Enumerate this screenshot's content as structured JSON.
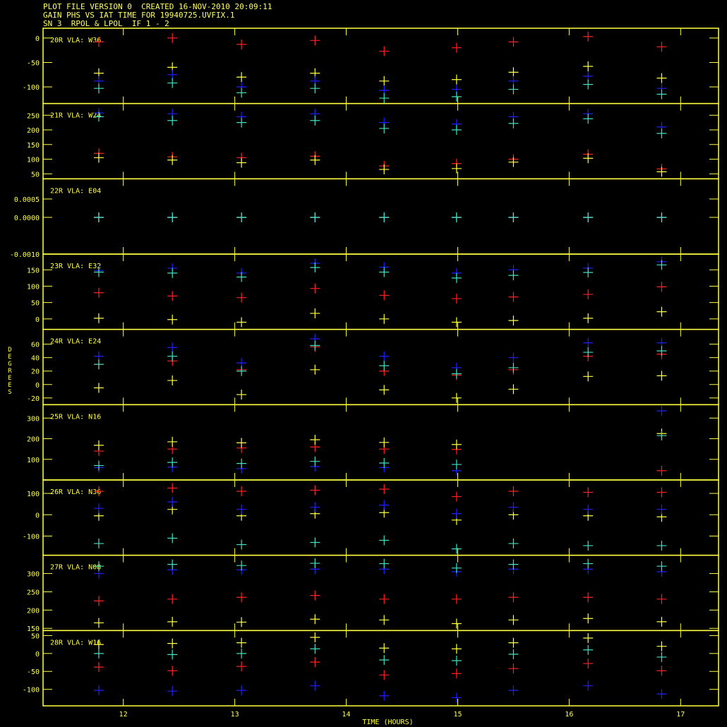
{
  "header": {
    "line1": "PLOT FILE VERSION 0  CREATED 16-NOV-2010 20:09:11",
    "line2": "GAIN PHS VS IAT TIME FOR 19940725.UVFIX.1",
    "line3": "SN 3  RPOL & LPOL  IF 1 - 2"
  },
  "colors": {
    "axes": "#ffff40",
    "series": [
      "#ff2020",
      "#ffff40",
      "#2020ff",
      "#40e0c0"
    ]
  },
  "chart_data": {
    "type": "scatter",
    "xlabel": "TIME (HOURS)",
    "ylabel": "DEGREES",
    "xlim": [
      11.28,
      17.34
    ],
    "xticks": [
      12,
      13,
      14,
      15,
      16,
      17
    ],
    "x": [
      11.78,
      12.44,
      13.06,
      13.72,
      14.34,
      14.99,
      15.5,
      16.17,
      16.83
    ],
    "panels": [
      {
        "label": "20R VLA: W36",
        "ylim": [
          -134,
          20
        ],
        "yticks": [
          0,
          -50,
          -100
        ],
        "yticklabels": [
          "0",
          "-50",
          "-100"
        ],
        "series": [
          [
            -8,
            0,
            -13,
            -5,
            -27,
            -20,
            -8,
            3,
            -18
          ],
          [
            -72,
            -60,
            -80,
            -72,
            -88,
            -85,
            -70,
            -58,
            -82
          ],
          [
            -88,
            -75,
            -100,
            -88,
            -107,
            -105,
            -88,
            -78,
            -103
          ],
          [
            -103,
            -92,
            -112,
            -103,
            -123,
            -120,
            -105,
            -95,
            -115
          ]
        ]
      },
      {
        "label": "21R VLA: W24",
        "ylim": [
          33,
          290
        ],
        "yticks": [
          250,
          200,
          150,
          100,
          50
        ],
        "yticklabels": [
          "250",
          "200",
          "150",
          "100",
          "50"
        ],
        "series": [
          [
            120,
            108,
            105,
            110,
            77,
            85,
            100,
            117,
            67
          ],
          [
            105,
            97,
            88,
            97,
            65,
            68,
            90,
            103,
            57
          ],
          [
            258,
            255,
            245,
            255,
            225,
            220,
            245,
            255,
            210
          ],
          [
            245,
            232,
            225,
            232,
            205,
            200,
            222,
            238,
            188
          ]
        ]
      },
      {
        "label": "22R VLA: E04",
        "ylim": [
          -0.001,
          0.00105
        ],
        "yticks": [
          0.0005,
          0,
          -0.001
        ],
        "yticklabels": [
          "0.0005",
          "0.0000",
          "-0.0010"
        ],
        "series": [
          [
            0,
            0,
            0,
            0,
            0,
            0,
            0,
            0,
            0
          ],
          [
            0,
            0,
            0,
            0,
            0,
            0,
            0,
            0,
            0
          ],
          [
            0,
            0,
            0,
            0,
            0,
            0,
            0,
            0,
            0
          ],
          [
            0,
            0,
            0,
            0,
            0,
            0,
            0,
            0,
            0
          ]
        ]
      },
      {
        "label": "23R VLA: E32",
        "ylim": [
          -32,
          198
        ],
        "yticks": [
          150,
          100,
          50,
          0
        ],
        "yticklabels": [
          "150",
          "100",
          "50",
          "0"
        ],
        "series": [
          [
            80,
            70,
            65,
            93,
            72,
            62,
            67,
            75,
            98
          ],
          [
            2,
            -2,
            -10,
            17,
            0,
            -10,
            -5,
            2,
            22
          ],
          [
            148,
            155,
            140,
            170,
            158,
            140,
            150,
            155,
            175
          ],
          [
            143,
            140,
            128,
            157,
            143,
            125,
            133,
            142,
            165
          ]
        ]
      },
      {
        "label": "24R VLA: E24",
        "ylim": [
          -30,
          82
        ],
        "yticks": [
          60,
          40,
          20,
          0,
          -20
        ],
        "yticklabels": [
          "60",
          "40",
          "20",
          "0",
          "-20"
        ],
        "series": [
          [
            30,
            35,
            22,
            56,
            20,
            14,
            22,
            42,
            45
          ],
          [
            -5,
            6,
            -15,
            22,
            -8,
            -20,
            -7,
            12,
            13
          ],
          [
            42,
            55,
            32,
            68,
            42,
            25,
            40,
            62,
            62
          ],
          [
            30,
            42,
            20,
            58,
            28,
            16,
            25,
            48,
            50
          ]
        ]
      },
      {
        "label": "25R VLA: N16",
        "ylim": [
          0,
          365
        ],
        "yticks": [
          300,
          200,
          100
        ],
        "yticklabels": [
          "300",
          "200",
          "100"
        ],
        "series": [
          [
            140,
            150,
            155,
            160,
            150,
            148,
            null,
            null,
            45
          ],
          [
            168,
            185,
            180,
            195,
            182,
            172,
            null,
            null,
            225
          ],
          [
            60,
            62,
            55,
            65,
            60,
            45,
            null,
            null,
            335
          ],
          [
            70,
            85,
            80,
            90,
            82,
            75,
            null,
            null,
            215
          ]
        ]
      },
      {
        "label": "26R VLA: N36",
        "ylim": [
          -190,
          163
        ],
        "yticks": [
          100,
          0,
          -100
        ],
        "yticklabels": [
          "100",
          "0",
          "-100"
        ],
        "series": [
          [
            110,
            125,
            110,
            115,
            120,
            85,
            110,
            105,
            105
          ],
          [
            -5,
            25,
            -5,
            5,
            10,
            -25,
            0,
            -5,
            -10
          ],
          [
            30,
            60,
            25,
            35,
            45,
            5,
            35,
            25,
            25
          ],
          [
            -135,
            -110,
            -140,
            -130,
            -120,
            -160,
            -135,
            -145,
            -145
          ]
        ]
      },
      {
        "label": "27R VLA: N08",
        "ylim": [
          144,
          350
        ],
        "yticks": [
          300,
          250,
          200,
          150
        ],
        "yticklabels": [
          "300",
          "250",
          "200",
          "150"
        ],
        "series": [
          [
            225,
            230,
            235,
            240,
            230,
            230,
            235,
            235,
            230
          ],
          [
            165,
            168,
            167,
            175,
            173,
            163,
            173,
            177,
            168
          ],
          [
            300,
            310,
            310,
            312,
            312,
            305,
            312,
            312,
            305
          ],
          [
            320,
            325,
            322,
            328,
            327,
            315,
            325,
            327,
            320
          ]
        ]
      },
      {
        "label": "28R VLA: W16",
        "ylim": [
          -146,
          64
        ],
        "yticks": [
          50,
          0,
          -50,
          -100
        ],
        "yticklabels": [
          "50",
          "0",
          "-50",
          "-100"
        ],
        "series": [
          [
            -38,
            -48,
            -36,
            -24,
            -60,
            -56,
            -42,
            -28,
            -48
          ],
          [
            25,
            28,
            30,
            45,
            15,
            13,
            30,
            43,
            20
          ],
          [
            -103,
            -105,
            -103,
            -90,
            -118,
            -123,
            -103,
            -90,
            -113
          ],
          [
            0,
            -3,
            0,
            13,
            -18,
            -20,
            -2,
            10,
            -10
          ]
        ]
      }
    ]
  }
}
